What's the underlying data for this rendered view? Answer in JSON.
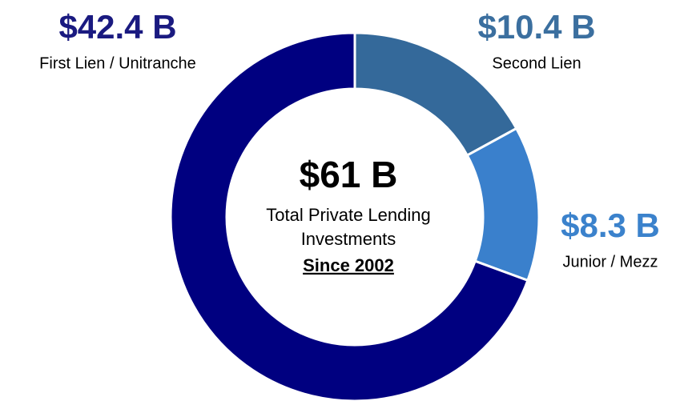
{
  "chart_data": {
    "type": "pie",
    "categories": [
      "Second Lien",
      "Junior / Mezz",
      "First Lien / Unitranche"
    ],
    "values": [
      10.4,
      8.3,
      42.4
    ],
    "value_labels": [
      "$10.4 B",
      "$8.3 B",
      "$42.4 B"
    ],
    "colors": [
      "#34699a",
      "#3a80cc",
      "#000080"
    ],
    "label_colors": [
      "#3b6f9f",
      "#3b82cc",
      "#1a1a80"
    ],
    "center": {
      "title": "$61 B",
      "lines": [
        "Total Private Lending",
        "Investments"
      ],
      "note": "Since 2002"
    }
  }
}
